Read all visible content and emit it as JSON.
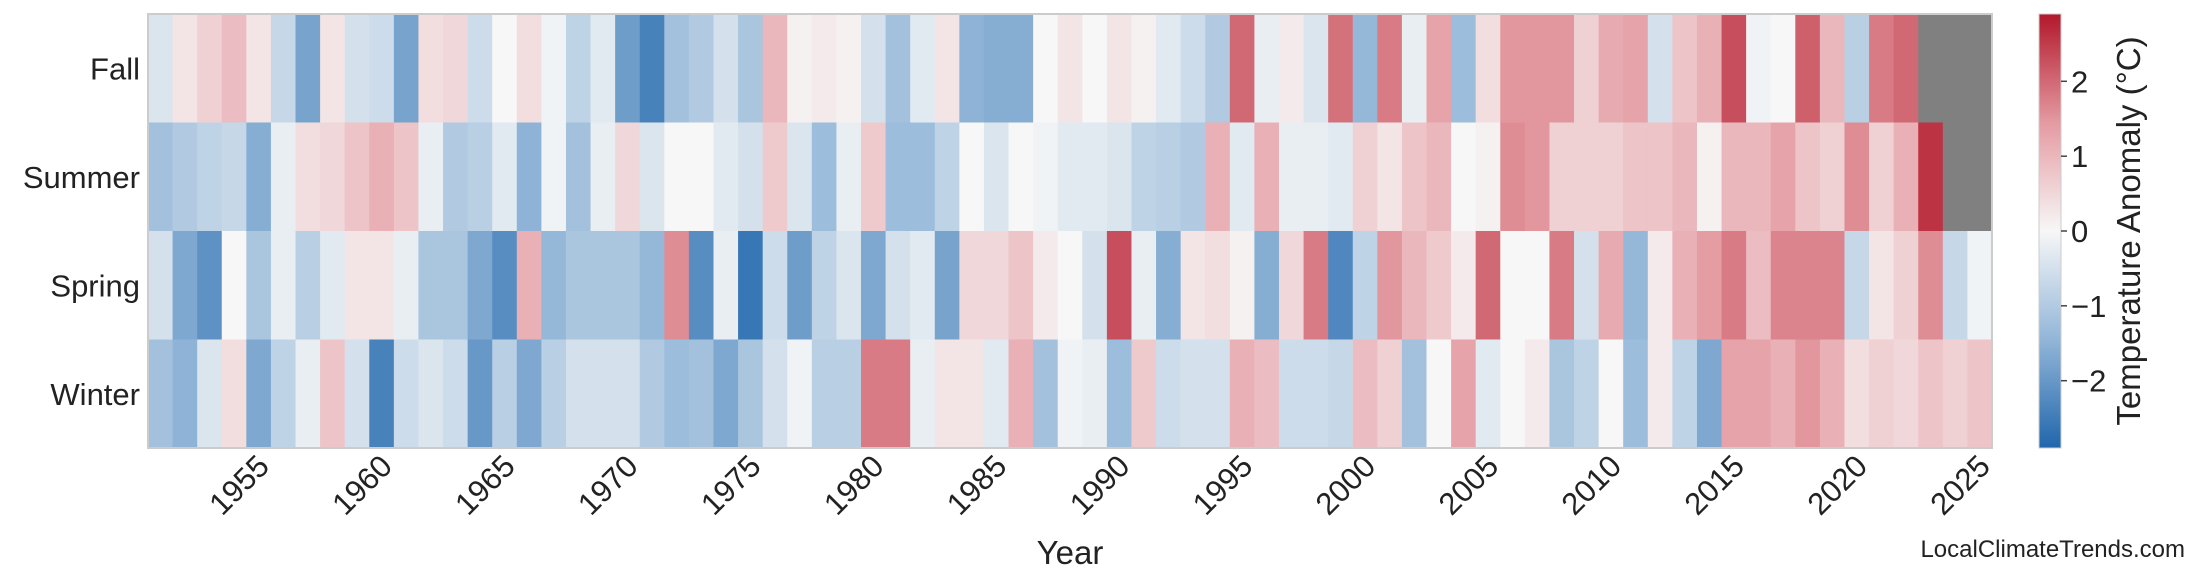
{
  "chart_data": {
    "type": "heatmap",
    "xlabel": "Year",
    "x_tick_labels": [
      "1955",
      "1960",
      "1965",
      "1970",
      "1975",
      "1980",
      "1985",
      "1990",
      "1995",
      "2000",
      "2005",
      "2010",
      "2015",
      "2020",
      "2025"
    ],
    "year_start": 1951,
    "year_end": 2025,
    "rows": [
      "Fall",
      "Summer",
      "Spring",
      "Winter"
    ],
    "colorbar": {
      "label": "Temperature Anomaly (°C)",
      "range": [
        -2.9,
        2.9
      ],
      "ticks": [
        "−2",
        "−1",
        "0",
        "1",
        "2"
      ]
    },
    "missing_color": "#808080",
    "colors": {
      "cold": "#2166ac",
      "neutral": "#f7f7f7",
      "warm": "#b2182b",
      "frame": "#cccccc"
    },
    "series": [
      {
        "name": "Fall",
        "values": [
          -0.4,
          0.3,
          0.6,
          0.9,
          0.3,
          -0.7,
          -1.8,
          0.3,
          -0.5,
          -0.6,
          -1.8,
          0.4,
          0.5,
          -0.6,
          0.0,
          0.4,
          -0.1,
          -0.8,
          -0.3,
          -1.9,
          -2.4,
          -1.2,
          -1.0,
          -0.5,
          -1.1,
          1.0,
          0.1,
          0.2,
          0.1,
          -0.5,
          -1.2,
          -0.3,
          0.3,
          -1.5,
          -1.6,
          -1.6,
          0.0,
          0.3,
          0.0,
          0.3,
          0.1,
          -0.3,
          -0.6,
          -1.0,
          2.0,
          -0.2,
          0.2,
          -0.4,
          1.9,
          -1.4,
          1.8,
          -0.2,
          1.3,
          -1.3,
          0.4,
          1.5,
          1.5,
          1.5,
          0.6,
          1.2,
          1.3,
          -0.5,
          0.8,
          1.1,
          2.3,
          -0.1,
          0.0,
          2.1,
          1.0,
          -0.9,
          1.8,
          2.0,
          null,
          null,
          null
        ]
      },
      {
        "name": "Summer",
        "values": [
          -1.2,
          -1.0,
          -0.8,
          -0.7,
          -1.6,
          -0.2,
          0.4,
          0.5,
          0.8,
          1.1,
          0.8,
          -0.2,
          -1.0,
          -0.9,
          -0.3,
          -1.5,
          -0.1,
          -1.2,
          -0.2,
          0.5,
          -0.4,
          0.0,
          0.0,
          -0.3,
          -0.5,
          0.7,
          -0.4,
          -1.3,
          -0.2,
          0.7,
          -1.3,
          -1.3,
          -0.8,
          0.0,
          -0.4,
          0.0,
          -0.1,
          -0.3,
          -0.3,
          -0.4,
          -0.8,
          -0.9,
          -1.0,
          1.1,
          -0.3,
          1.1,
          -0.2,
          -0.2,
          -0.3,
          0.6,
          0.3,
          0.8,
          1.0,
          0.0,
          0.1,
          1.6,
          1.5,
          0.6,
          0.6,
          0.6,
          0.8,
          0.8,
          1.0,
          0.1,
          1.0,
          1.0,
          1.3,
          0.8,
          0.6,
          1.6,
          0.6,
          1.1,
          2.6,
          null,
          null
        ]
      },
      {
        "name": "Spring",
        "values": [
          -0.5,
          -1.7,
          -2.1,
          0.0,
          -1.1,
          -0.2,
          -0.9,
          -0.3,
          0.3,
          0.3,
          -0.2,
          -1.1,
          -1.1,
          -1.7,
          -2.2,
          1.1,
          -1.4,
          -1.1,
          -1.1,
          -1.1,
          -1.4,
          1.6,
          -2.2,
          -0.2,
          -2.6,
          -0.6,
          -1.9,
          -0.8,
          -0.4,
          -1.7,
          -0.5,
          -0.3,
          -1.8,
          0.5,
          0.5,
          0.8,
          0.2,
          0.0,
          -0.5,
          2.3,
          -0.2,
          -1.6,
          0.3,
          0.4,
          0.1,
          -1.6,
          0.5,
          1.8,
          -2.3,
          -0.8,
          1.5,
          1.0,
          0.7,
          0.2,
          2.0,
          0.0,
          0.0,
          1.8,
          -0.5,
          1.2,
          -1.4,
          0.2,
          1.1,
          1.4,
          1.8,
          0.9,
          1.7,
          1.7,
          1.7,
          -0.7,
          0.3,
          0.6,
          1.6,
          -0.7,
          -0.1
        ]
      },
      {
        "name": "Winter",
        "values": [
          -1.2,
          -1.5,
          -0.4,
          0.4,
          -1.7,
          -0.8,
          -0.2,
          0.8,
          -0.5,
          -2.4,
          -0.6,
          -0.4,
          -0.6,
          -2.0,
          -0.9,
          -1.7,
          -0.9,
          -0.5,
          -0.5,
          -0.5,
          -1.0,
          -1.3,
          -1.2,
          -1.7,
          -1.1,
          -0.5,
          -0.1,
          -0.9,
          -0.9,
          1.8,
          1.8,
          -0.2,
          0.3,
          0.3,
          -0.3,
          1.1,
          -1.2,
          -0.1,
          -0.2,
          -1.3,
          0.7,
          -0.6,
          -0.5,
          -0.5,
          1.1,
          0.9,
          -0.6,
          -0.6,
          -0.7,
          0.9,
          0.6,
          -1.2,
          0.0,
          1.3,
          -0.3,
          0.0,
          0.2,
          -1.1,
          -0.8,
          0.0,
          -1.3,
          0.2,
          -0.8,
          -1.7,
          1.3,
          1.3,
          1.1,
          1.5,
          1.1,
          0.4,
          0.6,
          0.5,
          0.8,
          0.6,
          0.8
        ]
      }
    ]
  },
  "watermark": "LocalClimateTrends.com"
}
